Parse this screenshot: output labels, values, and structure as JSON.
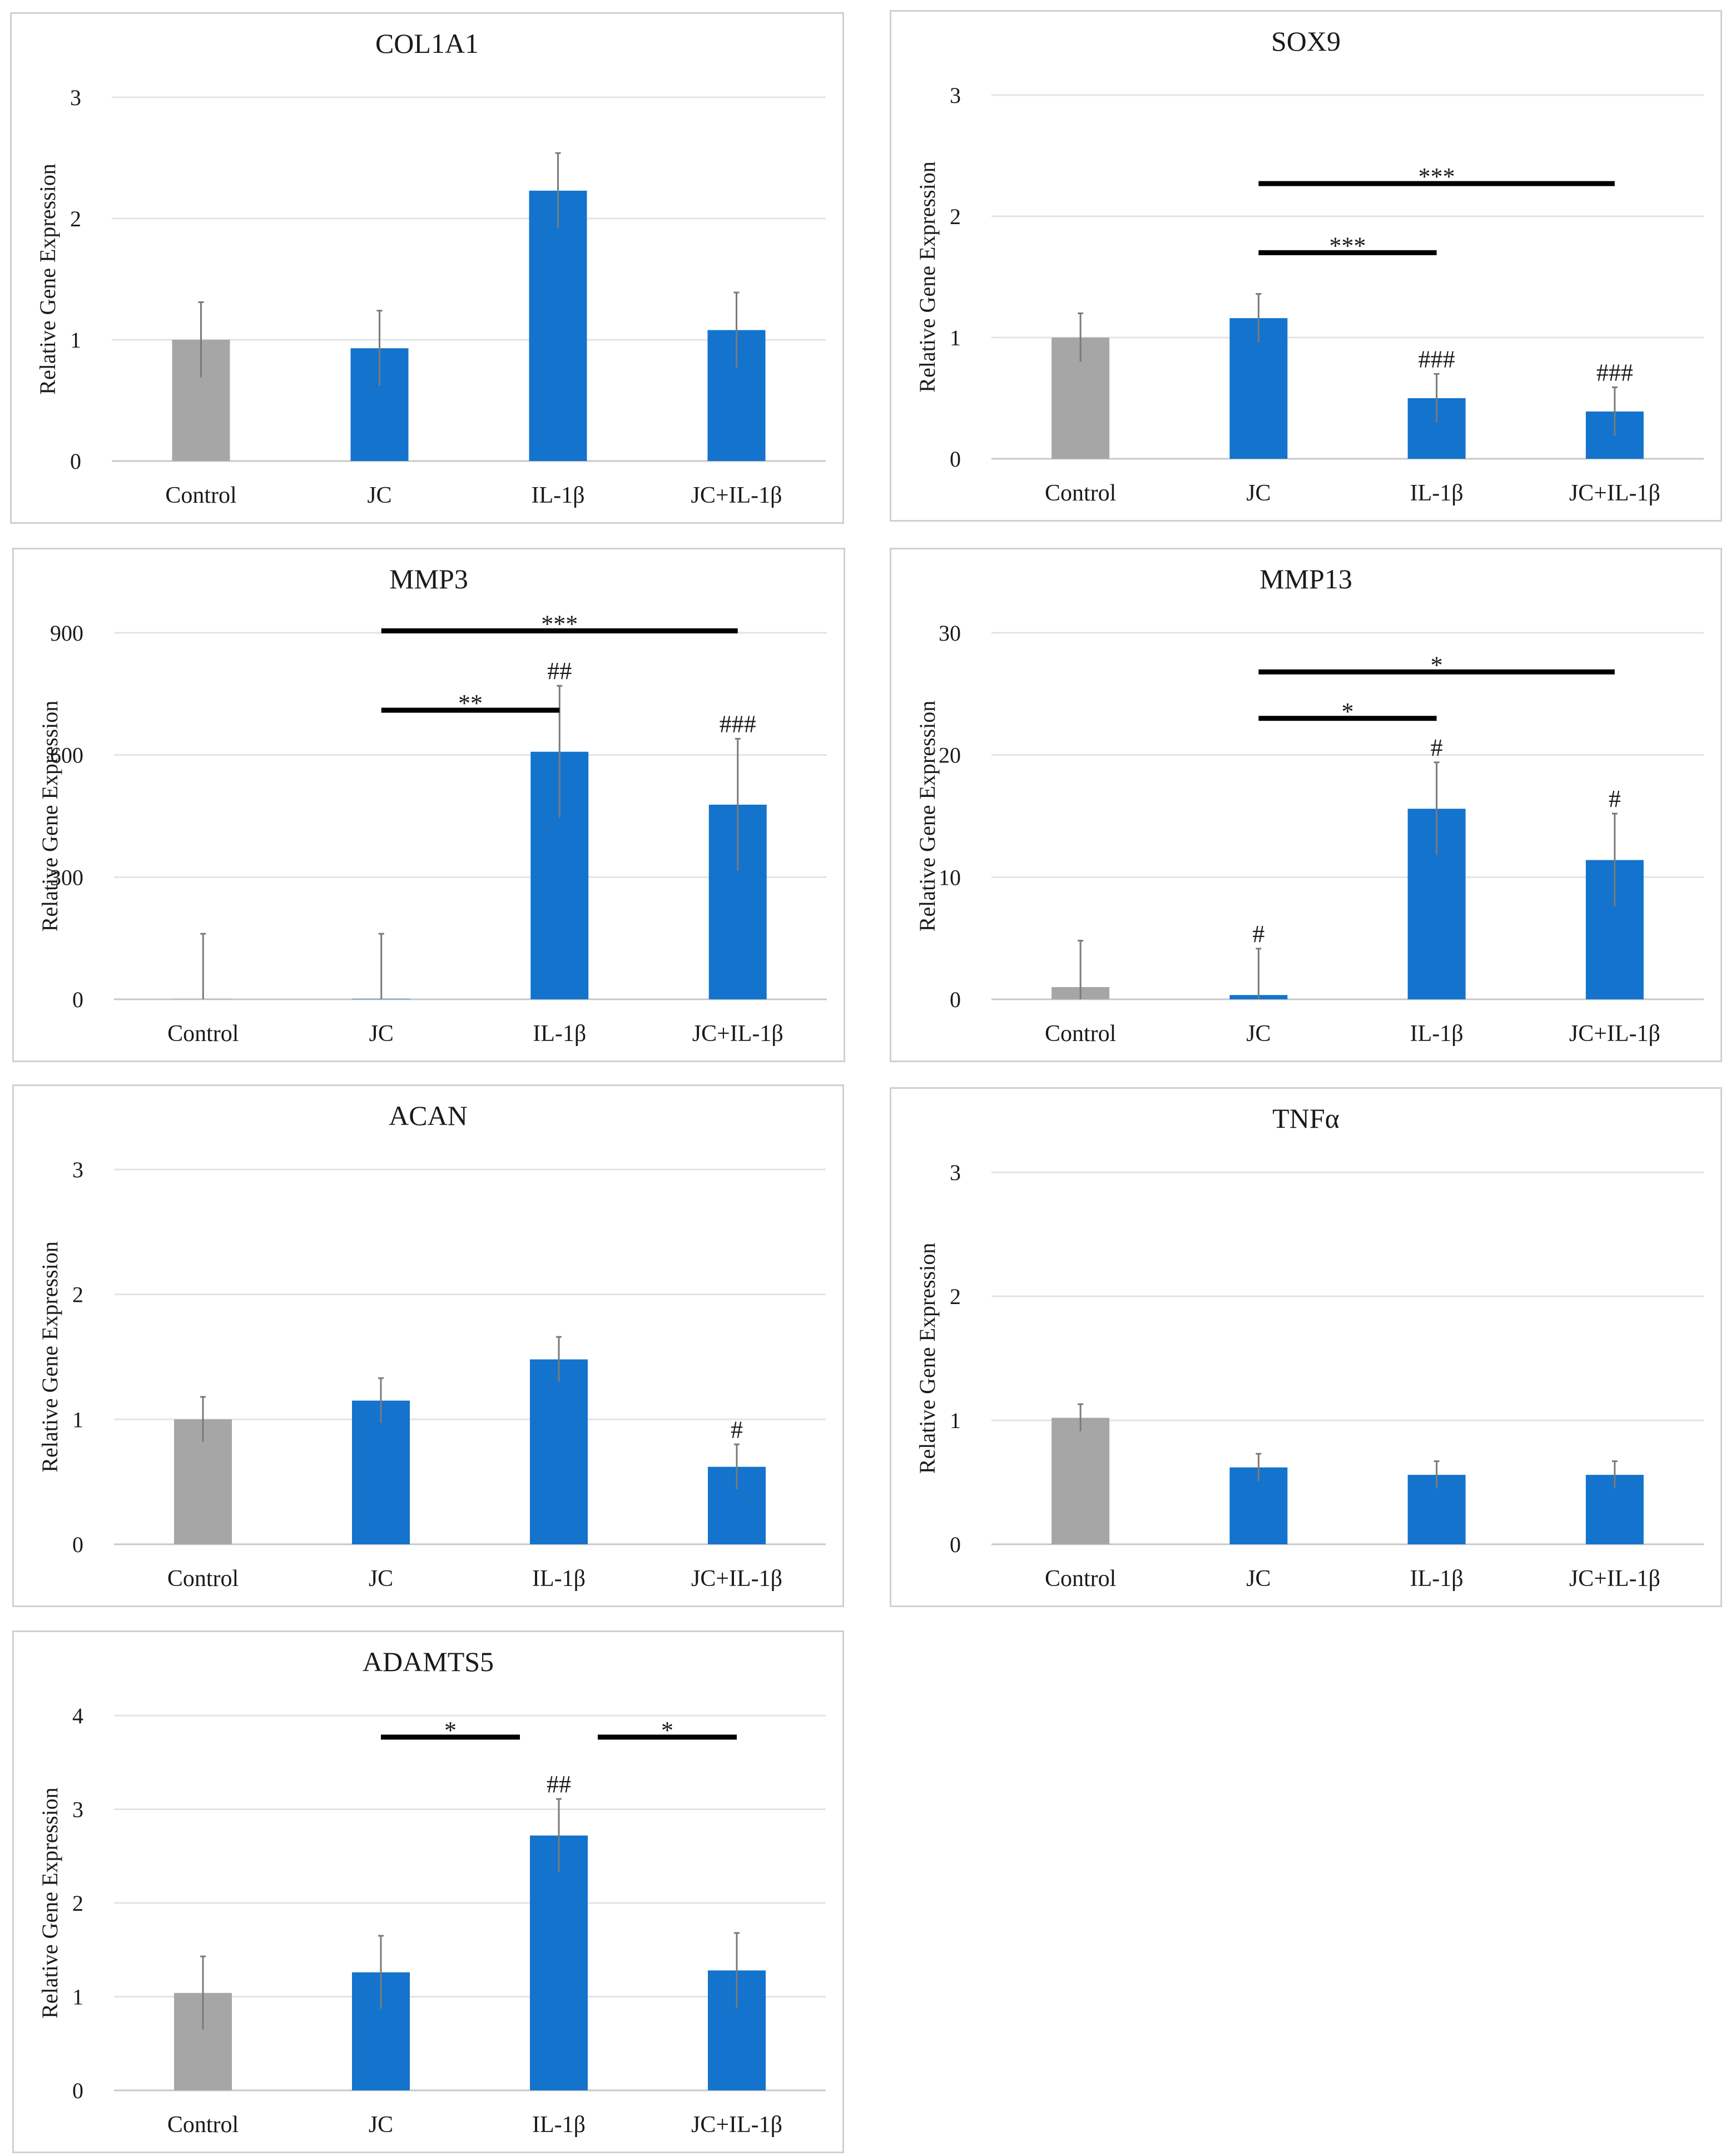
{
  "y_axis_label": "Relative Gene Expression",
  "chart_data": [
    {
      "type": "bar",
      "title": "COL1A1",
      "ylabel": "Relative Gene Expression",
      "categories": [
        "Control",
        "JC",
        "IL-1β",
        "JC+IL-1β"
      ],
      "values": [
        1.0,
        0.93,
        2.23,
        1.08
      ],
      "errors": [
        0.31,
        0.31,
        0.31,
        0.31
      ],
      "colors": [
        "#a6a6a6",
        "#1473cc",
        "#1473cc",
        "#1473cc"
      ],
      "ylim": [
        0,
        3
      ],
      "yticks": [
        0,
        1,
        2,
        3
      ],
      "hash_marks": [
        "",
        "",
        "",
        ""
      ],
      "brackets": []
    },
    {
      "type": "bar",
      "title": "SOX9",
      "ylabel": "Relative Gene Expression",
      "categories": [
        "Control",
        "JC",
        "IL-1β",
        "JC+IL-1β"
      ],
      "values": [
        1.0,
        1.16,
        0.5,
        0.39
      ],
      "errors": [
        0.2,
        0.2,
        0.2,
        0.2
      ],
      "colors": [
        "#a6a6a6",
        "#1473cc",
        "#1473cc",
        "#1473cc"
      ],
      "ylim": [
        0,
        3
      ],
      "yticks": [
        0,
        1,
        2,
        3
      ],
      "hash_marks": [
        "",
        "",
        "###",
        "###"
      ],
      "brackets": [
        {
          "from": 1,
          "to": 2,
          "label": "***",
          "level": 1.7
        },
        {
          "from": 1,
          "to": 3,
          "label": "***",
          "level": 2.27
        }
      ]
    },
    {
      "type": "bar",
      "title": "MMP3",
      "ylabel": "Relative Gene Expression",
      "categories": [
        "Control",
        "JC",
        "IL-1β",
        "JC+IL-1β"
      ],
      "values": [
        1,
        1,
        608,
        478
      ],
      "errors": [
        160,
        160,
        162,
        162
      ],
      "colors": [
        "#a6a6a6",
        "#1473cc",
        "#1473cc",
        "#1473cc"
      ],
      "ylim": [
        0,
        900
      ],
      "yticks": [
        0,
        300,
        600,
        900
      ],
      "hash_marks": [
        "",
        "",
        "##",
        "###"
      ],
      "brackets": [
        {
          "from": 1,
          "to": 2,
          "label": "**",
          "level": 710
        },
        {
          "from": 1,
          "to": 3,
          "label": "***",
          "level": 905
        }
      ]
    },
    {
      "type": "bar",
      "title": "MMP13",
      "ylabel": "Relative Gene Expression",
      "categories": [
        "Control",
        "JC",
        "IL-1β",
        "JC+IL-1β"
      ],
      "values": [
        1.0,
        0.35,
        15.6,
        11.4
      ],
      "errors": [
        3.8,
        3.8,
        3.8,
        3.8
      ],
      "colors": [
        "#a6a6a6",
        "#1473cc",
        "#1473cc",
        "#1473cc"
      ],
      "ylim": [
        0,
        30
      ],
      "yticks": [
        0,
        10,
        20,
        30
      ],
      "hash_marks": [
        "",
        "#",
        "#",
        "#"
      ],
      "brackets": [
        {
          "from": 1,
          "to": 2,
          "label": "*",
          "level": 23
        },
        {
          "from": 1,
          "to": 3,
          "label": "*",
          "level": 26.8
        }
      ]
    },
    {
      "type": "bar",
      "title": "ACAN",
      "ylabel": "Relative Gene Expression",
      "categories": [
        "Control",
        "JC",
        "IL-1β",
        "JC+IL-1β"
      ],
      "values": [
        1.0,
        1.15,
        1.48,
        0.62
      ],
      "errors": [
        0.18,
        0.18,
        0.18,
        0.18
      ],
      "colors": [
        "#a6a6a6",
        "#1473cc",
        "#1473cc",
        "#1473cc"
      ],
      "ylim": [
        0,
        3
      ],
      "yticks": [
        0,
        1,
        2,
        3
      ],
      "hash_marks": [
        "",
        "",
        "",
        "#"
      ],
      "brackets": []
    },
    {
      "type": "bar",
      "title": "TNFα",
      "ylabel": "Relative Gene Expression",
      "categories": [
        "Control",
        "JC",
        "IL-1β",
        "JC+IL-1β"
      ],
      "values": [
        1.02,
        0.62,
        0.56,
        0.56
      ],
      "errors": [
        0.11,
        0.11,
        0.11,
        0.11
      ],
      "colors": [
        "#a6a6a6",
        "#1473cc",
        "#1473cc",
        "#1473cc"
      ],
      "ylim": [
        0,
        3
      ],
      "yticks": [
        0,
        1,
        2,
        3
      ],
      "hash_marks": [
        "",
        "",
        "",
        ""
      ],
      "brackets": []
    },
    {
      "type": "bar",
      "title": "ADAMTS5",
      "ylabel": "Relative Gene Expression",
      "categories": [
        "Control",
        "JC",
        "IL-1β",
        "JC+IL-1β"
      ],
      "values": [
        1.04,
        1.26,
        2.72,
        1.28
      ],
      "errors": [
        0.39,
        0.39,
        0.39,
        0.4
      ],
      "colors": [
        "#a6a6a6",
        "#1473cc",
        "#1473cc",
        "#1473cc"
      ],
      "ylim": [
        0,
        4
      ],
      "yticks": [
        0,
        1,
        2,
        3,
        4
      ],
      "hash_marks": [
        "",
        "",
        "##",
        ""
      ],
      "brackets": [
        {
          "from": 1,
          "to": 2,
          "label": "*",
          "level": 3.77,
          "split": "right"
        },
        {
          "from": 2,
          "to": 3,
          "label": "*",
          "level": 3.77,
          "split": "left"
        }
      ]
    }
  ]
}
